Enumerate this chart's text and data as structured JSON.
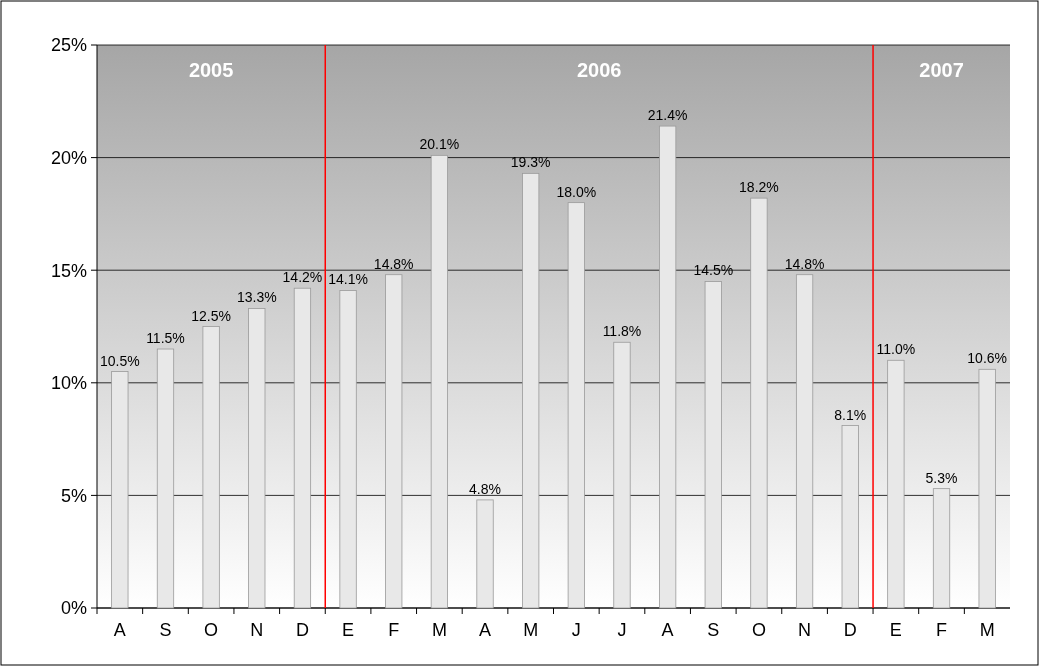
{
  "chart_data": {
    "type": "bar",
    "categories": [
      "A",
      "S",
      "O",
      "N",
      "D",
      "E",
      "F",
      "M",
      "A",
      "M",
      "J",
      "J",
      "A",
      "S",
      "O",
      "N",
      "D",
      "E",
      "F",
      "M"
    ],
    "values": [
      10.5,
      11.5,
      12.5,
      13.3,
      14.2,
      14.1,
      14.8,
      20.1,
      4.8,
      19.3,
      18.0,
      11.8,
      21.4,
      14.5,
      18.2,
      14.8,
      8.1,
      11.0,
      5.3,
      10.6
    ],
    "value_labels": [
      "10.5%",
      "11.5%",
      "12.5%",
      "13.3%",
      "14.2%",
      "14.1%",
      "14.8%",
      "20.1%",
      "4.8%",
      "19.3%",
      "18.0%",
      "11.8%",
      "21.4%",
      "14.5%",
      "18.2%",
      "14.8%",
      "8.1%",
      "11.0%",
      "5.3%",
      "10.6%"
    ],
    "color": "#e8e8e8",
    "ylim": [
      0,
      25
    ],
    "yticks": [
      {
        "value": 0,
        "label": "0%"
      },
      {
        "value": 5,
        "label": "5%"
      },
      {
        "value": 10,
        "label": "10%"
      },
      {
        "value": 15,
        "label": "15%"
      },
      {
        "value": 20,
        "label": "20%"
      },
      {
        "value": 25,
        "label": "25%"
      }
    ],
    "grid": "y",
    "annotations": [
      "2005",
      "2006",
      "2007"
    ]
  }
}
